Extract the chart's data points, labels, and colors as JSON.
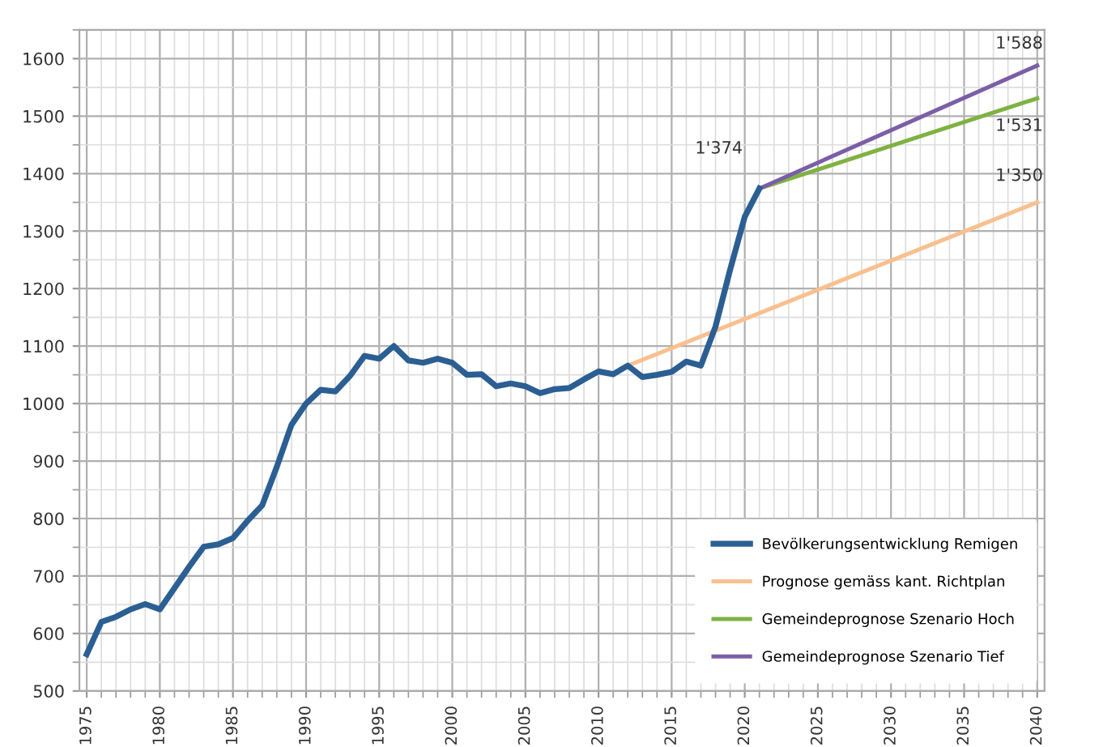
{
  "chart_data": {
    "type": "line",
    "xlim": [
      1974.5,
      2040.5
    ],
    "xticks": [
      1975,
      1980,
      1985,
      1990,
      1995,
      2000,
      2005,
      2010,
      2015,
      2020,
      2025,
      2030,
      2035,
      2040
    ],
    "ylim": [
      500,
      1650
    ],
    "yticks": [
      500,
      600,
      700,
      800,
      900,
      1000,
      1100,
      1200,
      1300,
      1400,
      1500,
      1600
    ],
    "grid": true,
    "legend": "bottom right",
    "marker": "none",
    "line_style": "solid",
    "series": [
      {
        "name": "Bevölkerungsentwicklung Remigen",
        "color": "#2b5f93",
        "x": [
          1975,
          1976,
          1977,
          1978,
          1979,
          1980,
          1981,
          1982,
          1983,
          1984,
          1985,
          1986,
          1987,
          1988,
          1989,
          1990,
          1991,
          1992,
          1993,
          1994,
          1995,
          1996,
          1997,
          1998,
          1999,
          2000,
          2001,
          2002,
          2003,
          2004,
          2005,
          2006,
          2007,
          2008,
          2009,
          2010,
          2011,
          2012,
          2013,
          2014,
          2015,
          2016,
          2017,
          2018,
          2019,
          2020,
          2021
        ],
        "values": [
          564,
          620,
          629,
          642,
          651,
          642,
          679,
          716,
          751,
          755,
          766,
          796,
          823,
          890,
          963,
          1000,
          1024,
          1021,
          1048,
          1083,
          1078,
          1100,
          1075,
          1071,
          1078,
          1071,
          1050,
          1051,
          1030,
          1035,
          1030,
          1018,
          1025,
          1027,
          1042,
          1056,
          1051,
          1066,
          1046,
          1050,
          1055,
          1073,
          1066,
          1134,
          1233,
          1325,
          1374
        ],
        "value_labels": [
          null,
          null,
          null,
          null,
          null,
          null,
          null,
          null,
          null,
          null,
          null,
          null,
          null,
          null,
          null,
          null,
          null,
          null,
          null,
          null,
          null,
          null,
          null,
          null,
          null,
          null,
          null,
          null,
          null,
          null,
          null,
          null,
          null,
          null,
          null,
          null,
          null,
          null,
          null,
          null,
          null,
          null,
          null,
          null,
          null,
          null,
          "1'374"
        ]
      },
      {
        "name": "Prognose gemäss kant. Richtplan",
        "color": "#f9c08f",
        "x": [
          2012,
          2040
        ],
        "values": [
          1066,
          1350
        ],
        "value_labels": [
          null,
          "1'350"
        ]
      },
      {
        "name": "Gemeindeprognose Szenario Hoch",
        "color": "#7fb241",
        "x": [
          2021,
          2040
        ],
        "values": [
          1374,
          1531
        ],
        "value_labels": [
          null,
          "1'531"
        ]
      },
      {
        "name": "Gemeindeprognose Szenario Tief",
        "color": "#7b5ea7",
        "x": [
          2021,
          2040
        ],
        "values": [
          1374,
          1588
        ],
        "value_labels": [
          null,
          "1'588"
        ]
      }
    ]
  }
}
